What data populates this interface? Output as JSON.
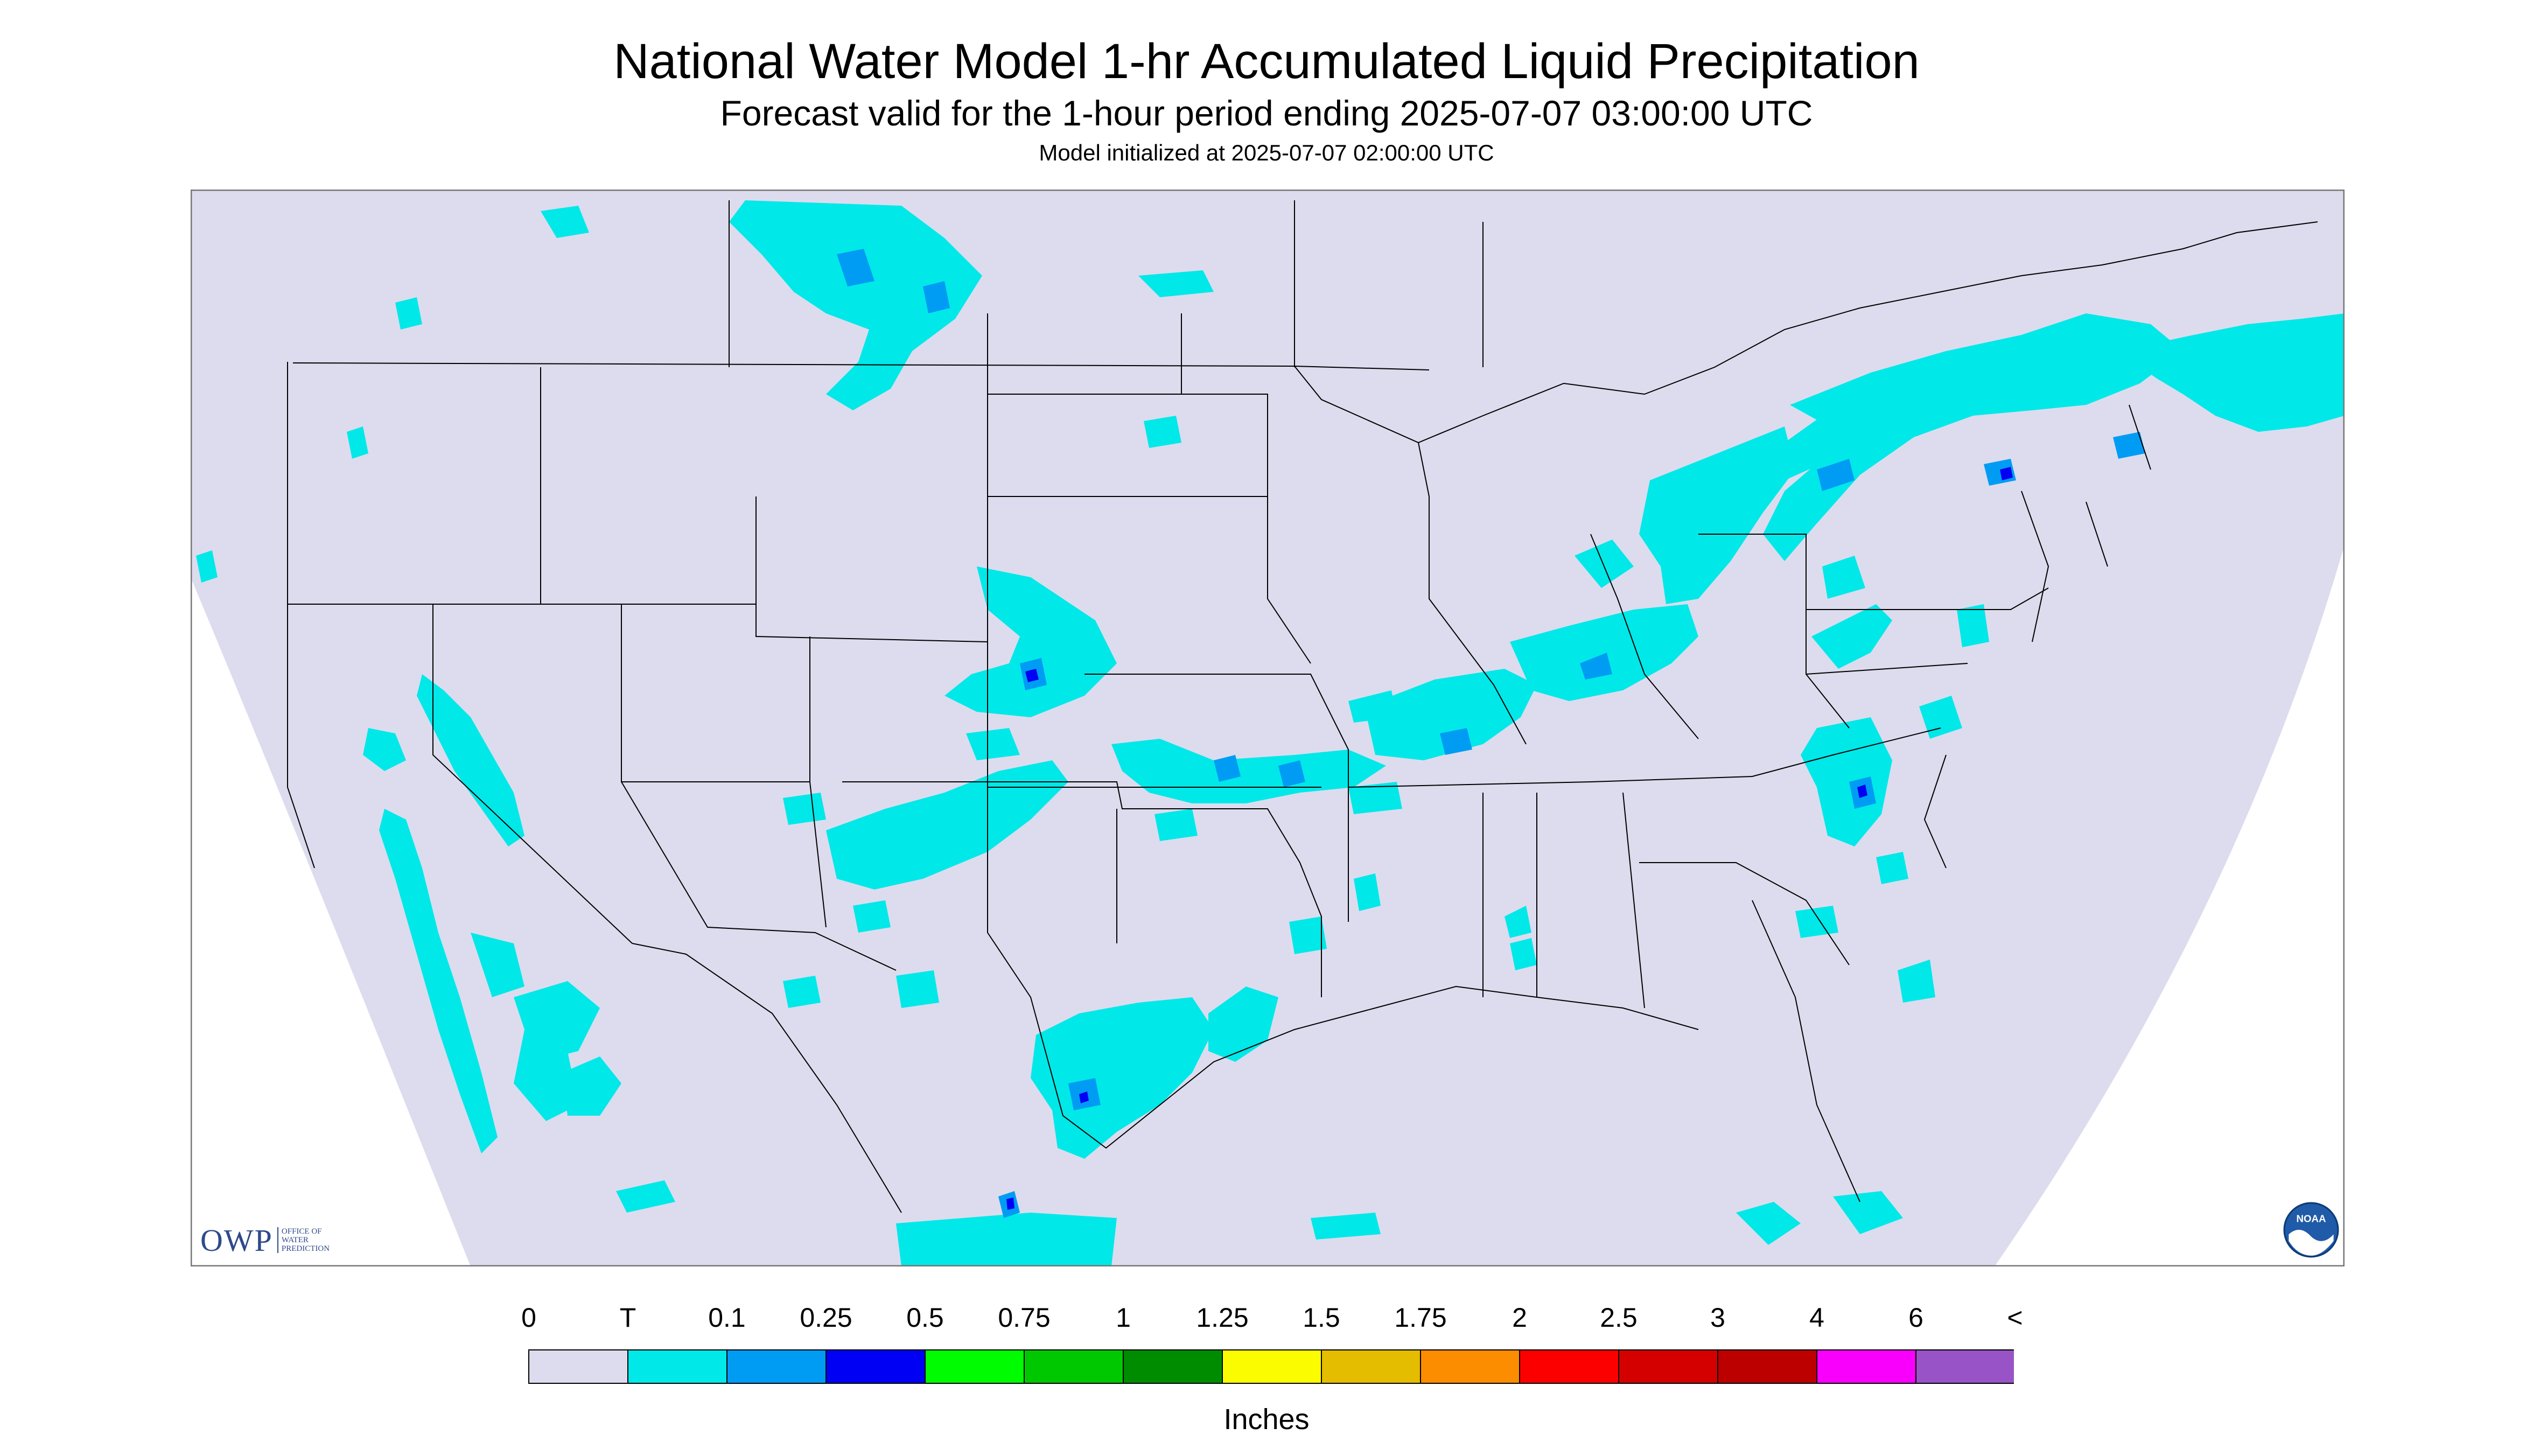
{
  "header": {
    "title": "National Water Model 1-hr Accumulated Liquid Precipitation",
    "subtitle": "Forecast valid for the 1-hour period ending 2025-07-07 03:00:00 UTC",
    "init_line": "Model initialized at 2025-07-07 02:00:00 UTC"
  },
  "legend": {
    "labels": [
      "0",
      "T",
      "0.1",
      "0.25",
      "0.5",
      "0.75",
      "1",
      "1.25",
      "1.5",
      "1.75",
      "2",
      "2.5",
      "3",
      "4",
      "6",
      "<"
    ],
    "colors": [
      "#dcdcee",
      "#00e8e8",
      "#009cf4",
      "#0000f4",
      "#00fc00",
      "#00c800",
      "#008c00",
      "#fcfc00",
      "#e4bc00",
      "#fc8c00",
      "#fc0000",
      "#d40000",
      "#bc0000",
      "#f800fc",
      "#9854c6"
    ],
    "units": "Inches"
  },
  "logos": {
    "owp_text": "OWP",
    "owp_sub": [
      "OFFICE OF",
      "WATER",
      "PREDICTION"
    ],
    "noaa_text": "NOAA"
  },
  "colors": {
    "map_bg": "#dcdcee",
    "trace": "#00e8e8",
    "light": "#009cf4",
    "moderate": "#0000f4",
    "border": "#000000"
  }
}
